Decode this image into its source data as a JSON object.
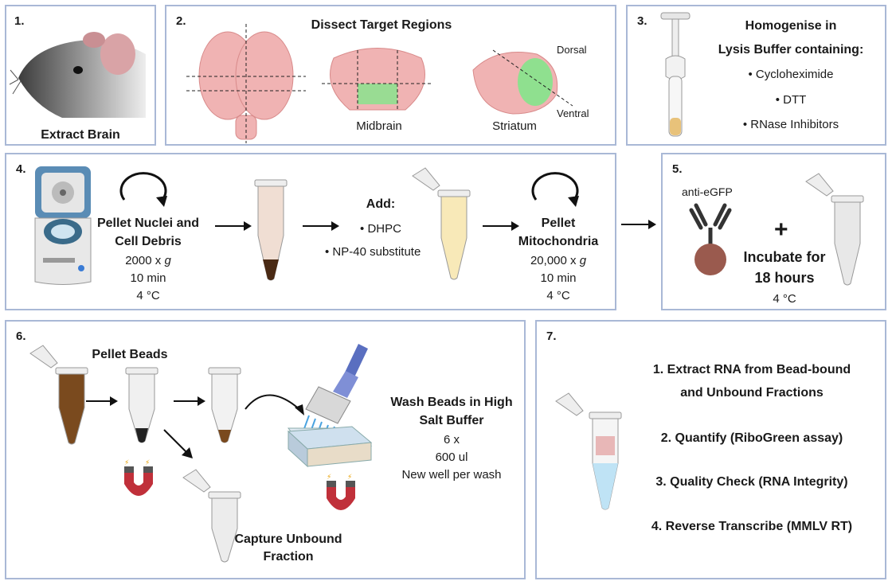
{
  "panels": [
    {
      "number": "1.",
      "title": "Extract Brain"
    },
    {
      "number": "2.",
      "title": "Dissect Target Regions",
      "midbrain": "Midbrain",
      "striatum": "Striatum",
      "dorsal": "Dorsal",
      "ventral": "Ventral"
    },
    {
      "number": "3.",
      "title_line1": "Homogenise in",
      "title_line2": "Lysis Buffer containing:",
      "items": [
        "• Cycloheximide",
        "• DTT",
        "• RNase Inhibitors"
      ]
    },
    {
      "number": "4.",
      "step1_line1": "Pellet Nuclei and",
      "step1_line2": "Cell Debris",
      "step1_params": [
        "2000 x ",
        "10 min",
        "4 °C"
      ],
      "g": "g",
      "add_title": "Add:",
      "add_items": [
        "• DHPC",
        "• NP-40 substitute"
      ],
      "step2_line1": "Pellet",
      "step2_line2": "Mitochondria",
      "step2_params": [
        "20,000 x ",
        "10 min",
        "4 °C"
      ]
    },
    {
      "number": "5.",
      "antibody": "anti-eGFP",
      "plus": "+",
      "incubate_line1": "Incubate for",
      "incubate_line2": "18 hours",
      "temp": "4 °C"
    },
    {
      "number": "6.",
      "pellet_beads": "Pellet Beads",
      "wash_line1": "Wash Beads in High",
      "wash_line2": "Salt Buffer",
      "wash_params": [
        "6 x",
        "600 ul",
        "New well per wash"
      ],
      "capture_line1": "Capture Unbound",
      "capture_line2": "Fraction"
    },
    {
      "number": "7.",
      "steps": [
        "1. Extract RNA from Bead-bound",
        "and Unbound Fractions",
        "2. Quantify (RiboGreen assay)",
        "3. Quality Check (RNA Integrity)",
        "4. Reverse Transcribe (MMLV RT)"
      ]
    }
  ],
  "colors": {
    "border": "#a9b8d6",
    "brain": "#f0b3b3",
    "region": "#8fe08f",
    "magnet": "#c0303a",
    "pellet": "#4a2a14",
    "bead": "#9a5a4e",
    "pipette": "#5a6fc0",
    "liquid_blue": "#bfe3f5"
  }
}
